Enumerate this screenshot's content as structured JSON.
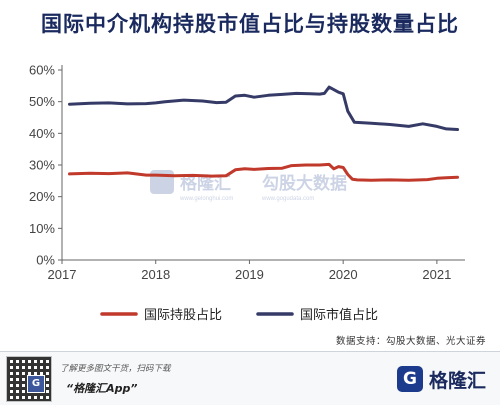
{
  "chart_data": {
    "type": "line",
    "title": "国际中介机构持股市值占比与持股数量占比",
    "xlabel": "",
    "ylabel": "",
    "xlim": [
      2017.0,
      2021.3
    ],
    "ylim": [
      0,
      60
    ],
    "x_ticks": [
      "2017",
      "2018",
      "2019",
      "2020",
      "2021"
    ],
    "y_ticks": [
      "0%",
      "10%",
      "20%",
      "30%",
      "40%",
      "50%",
      "60%"
    ],
    "grid": false,
    "legend_position": "bottom",
    "series": [
      {
        "name": "国际持股占比",
        "color": "#c0392b",
        "x": [
          2017.08,
          2017.3,
          2017.5,
          2017.7,
          2017.9,
          2018.0,
          2018.2,
          2018.4,
          2018.6,
          2018.75,
          2018.85,
          2018.95,
          2019.05,
          2019.2,
          2019.35,
          2019.45,
          2019.6,
          2019.75,
          2019.85,
          2019.9,
          2019.95,
          2020.0,
          2020.05,
          2020.1,
          2020.15,
          2020.3,
          2020.5,
          2020.7,
          2020.9,
          2021.0,
          2021.1,
          2021.22
        ],
        "values": [
          27.2,
          27.4,
          27.3,
          27.5,
          26.8,
          26.8,
          26.6,
          26.7,
          26.5,
          26.6,
          28.5,
          28.8,
          28.6,
          28.9,
          29.0,
          29.8,
          30.0,
          30.0,
          30.2,
          28.8,
          29.5,
          29.2,
          27.0,
          25.5,
          25.3,
          25.2,
          25.3,
          25.2,
          25.4,
          25.8,
          26.0,
          26.1
        ]
      },
      {
        "name": "国际市值占比",
        "color": "#353b66",
        "x": [
          2017.08,
          2017.3,
          2017.5,
          2017.7,
          2017.9,
          2018.0,
          2018.1,
          2018.3,
          2018.5,
          2018.65,
          2018.75,
          2018.85,
          2018.95,
          2019.05,
          2019.2,
          2019.35,
          2019.5,
          2019.65,
          2019.75,
          2019.8,
          2019.85,
          2019.95,
          2020.0,
          2020.05,
          2020.12,
          2020.3,
          2020.5,
          2020.7,
          2020.85,
          2021.0,
          2021.1,
          2021.22
        ],
        "values": [
          49.2,
          49.5,
          49.6,
          49.3,
          49.4,
          49.6,
          50.0,
          50.5,
          50.2,
          49.7,
          49.8,
          51.8,
          52.0,
          51.4,
          52.0,
          52.3,
          52.6,
          52.5,
          52.4,
          52.6,
          54.6,
          53.0,
          52.5,
          47.0,
          43.5,
          43.2,
          42.8,
          42.2,
          43.0,
          42.2,
          41.4,
          41.2
        ]
      }
    ]
  },
  "watermark": {
    "logo_icon": "gelonghui-logo-icon",
    "name": "格隆汇",
    "site": "www.gelonghui.com",
    "secondary": "勾股大数据",
    "secondary_site": "www.gogudata.com"
  },
  "source_text": "数据支持：勾股大数据、光大证券",
  "footer": {
    "qr_icon": "qr-code-icon",
    "line1": "了解更多图文干货，扫码下载",
    "line2": "“格隆汇App”",
    "brand_name": "格隆汇",
    "brand_icon_glyph": "G"
  }
}
